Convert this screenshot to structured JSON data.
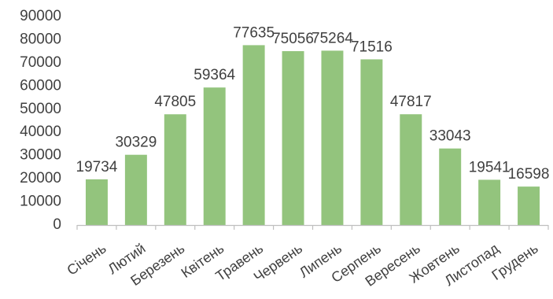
{
  "chart_data": {
    "type": "bar",
    "categories": [
      "Січень",
      "Лютий",
      "Березень",
      "Квітень",
      "Травень",
      "Червень",
      "Липень",
      "Серпень",
      "Вересень",
      "Жовтень",
      "Листопад",
      "Грудень"
    ],
    "values": [
      19734,
      30329,
      47805,
      59364,
      77635,
      75056,
      75264,
      71516,
      47817,
      33043,
      19541,
      16598
    ],
    "ylim": [
      0,
      90000
    ],
    "yticks": [
      0,
      10000,
      20000,
      30000,
      40000,
      50000,
      60000,
      70000,
      80000,
      90000
    ],
    "grid": false,
    "legend": "none",
    "bar_color": "#93C47D",
    "axis_color": "#BFBFBF",
    "text_color": "#404040",
    "data_labels": true
  }
}
